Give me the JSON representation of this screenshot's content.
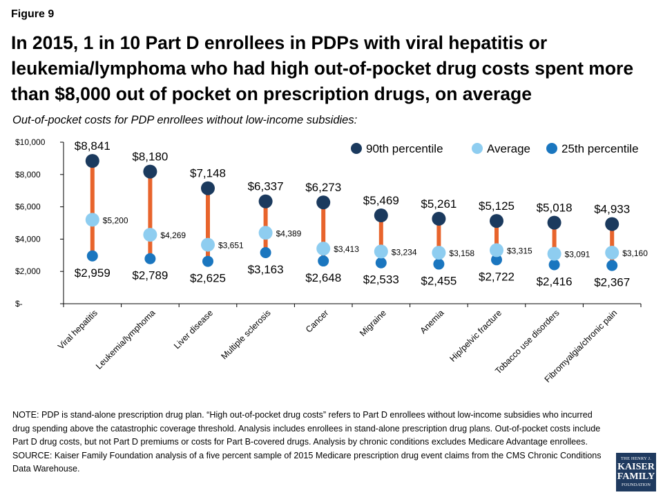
{
  "figure_label": "Figure 9",
  "title": "In 2015, 1 in 10 Part D enrollees in PDPs with viral hepatitis or leukemia/lymphoma who had high out-of-pocket drug costs spent more than $8,000 out of pocket on prescription drugs, on average",
  "subtitle": "Out-of-pocket costs for PDP enrollees without low-income subsidies:",
  "note": "NOTE: PDP is stand-alone prescription drug plan. “High out-of-pocket drug costs” refers to Part D enrollees without low-income subsidies who incurred drug spending above the catastrophic coverage threshold. Analysis includes enrollees in stand-alone prescription drug plans. Out-of-pocket costs include Part D drug costs, but not Part D premiums or costs for Part B-covered drugs. Analysis by chronic conditions excludes Medicare Advantage enrollees.",
  "source": "SOURCE: Kaiser Family Foundation analysis of a five percent sample of 2015 Medicare prescription drug event claims from the CMS Chronic Conditions Data Warehouse.",
  "logo": {
    "line1": "THE HENRY J.",
    "line2": "KAISER",
    "line3": "FAMILY",
    "line4": "FOUNDATION"
  },
  "chart_data": {
    "type": "scatter",
    "categories": [
      "Viral hepatitis",
      "Leukemia/lymphoma",
      "Liver disease",
      "Multiple sclerosis",
      "Cancer",
      "Migraine",
      "Anemia",
      "Hip/pelvic fracture",
      "Tobacco use disorders",
      "Fibromyalgia/chronic pain"
    ],
    "series": [
      {
        "name": "90th percentile",
        "color": "#1b3a5e",
        "values": [
          8841,
          8180,
          7148,
          6337,
          6273,
          5469,
          5261,
          5125,
          5018,
          4933
        ],
        "labels": [
          "$8,841",
          "$8,180",
          "$7,148",
          "$6,337",
          "$6,273",
          "$5,469",
          "$5,261",
          "$5,125",
          "$5,018",
          "$4,933"
        ]
      },
      {
        "name": "Average",
        "color": "#8ecdf0",
        "values": [
          5200,
          4269,
          3651,
          4389,
          3413,
          3234,
          3158,
          3315,
          3091,
          3160
        ],
        "labels": [
          "$5,200",
          "$4,269",
          "$3,651",
          "$4,389",
          "$3,413",
          "$3,234",
          "$3,158",
          "$3,315",
          "$3,091",
          "$3,160"
        ]
      },
      {
        "name": "25th percentile",
        "color": "#1a76bf",
        "values": [
          2959,
          2789,
          2625,
          3163,
          2648,
          2533,
          2455,
          2722,
          2416,
          2367
        ],
        "labels": [
          "$2,959",
          "$2,789",
          "$2,625",
          "$3,163",
          "$2,648",
          "$2,533",
          "$2,455",
          "$2,722",
          "$2,416",
          "$2,367"
        ]
      }
    ],
    "range_line_color": "#e8642c",
    "ylim": [
      0,
      10000
    ],
    "yticks": [
      0,
      2000,
      4000,
      6000,
      8000,
      10000
    ],
    "ytick_labels": [
      "$-",
      "$2,000",
      "$4,000",
      "$6,000",
      "$8,000",
      "$10,000"
    ],
    "legend": "top-right",
    "grid": false
  }
}
